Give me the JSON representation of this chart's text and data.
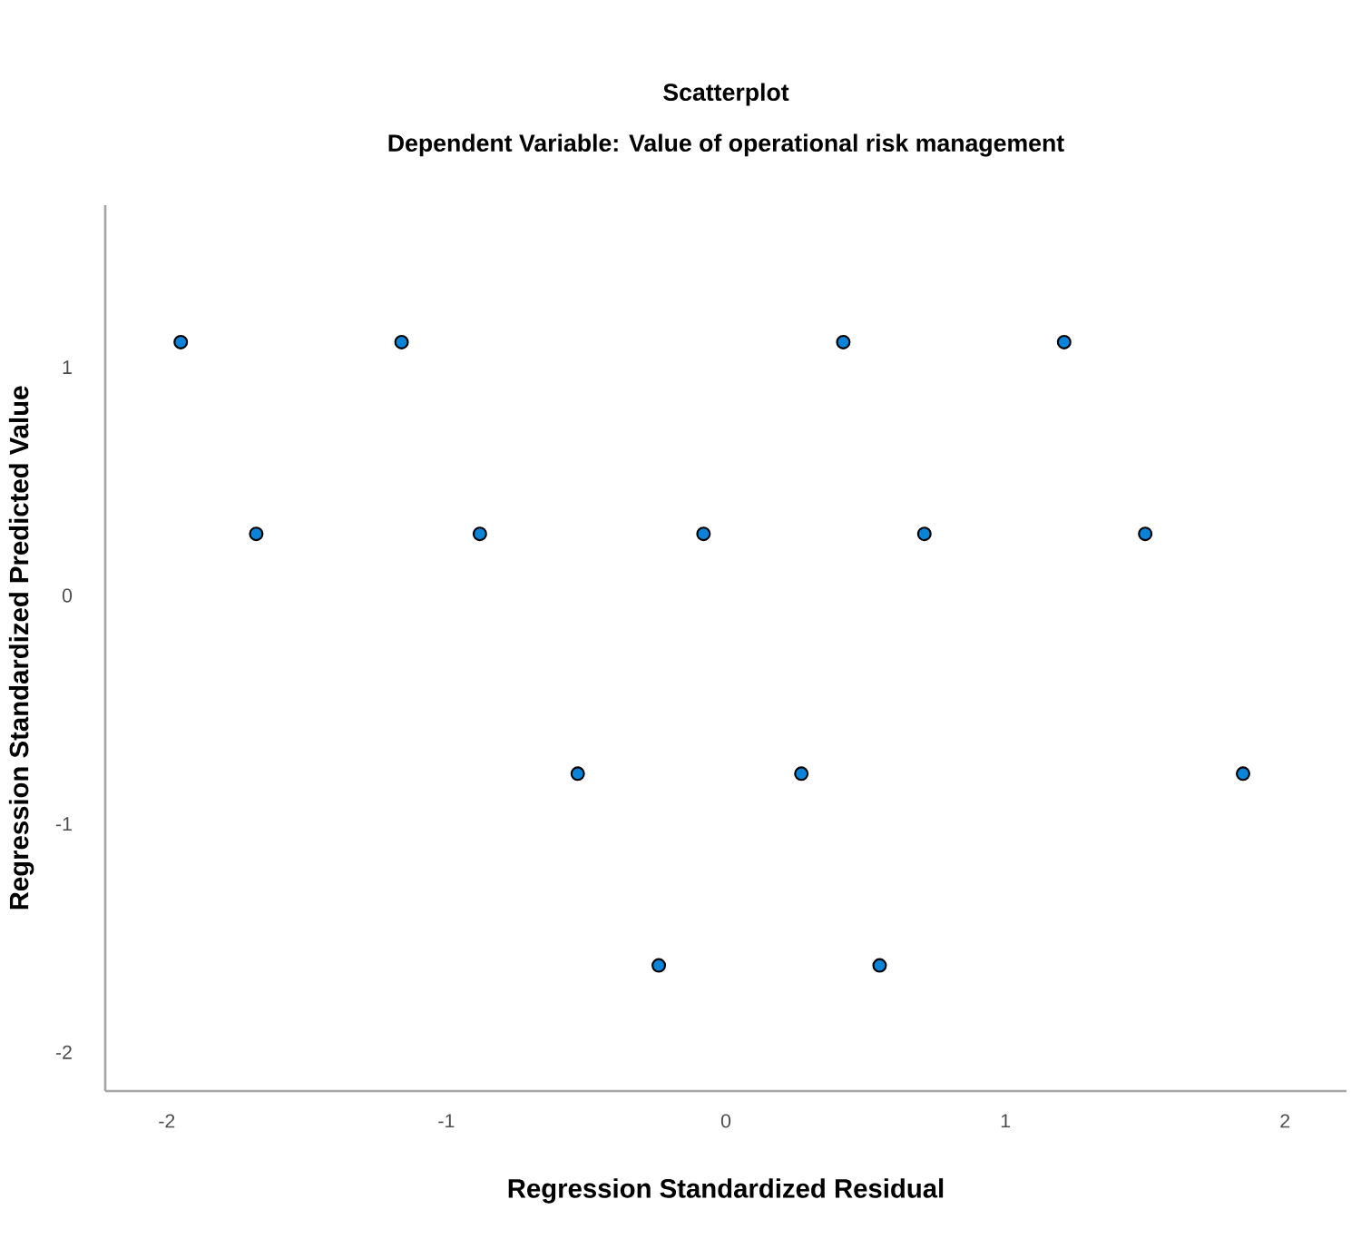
{
  "chart_data": {
    "type": "scatter",
    "title": "Scatterplot",
    "subtitle": "Dependent Variable: Value of operational risk management",
    "xlabel": "Regression Standardized Residual",
    "ylabel": "Regression Standardized Predicted Value",
    "xlim": [
      -2.22,
      2.22
    ],
    "ylim": [
      -2.17,
      1.71
    ],
    "xticks": [
      -2,
      -1,
      0,
      1,
      2
    ],
    "yticks": [
      -2,
      -1,
      0,
      1
    ],
    "grid": false,
    "marker": "circle",
    "series": [
      {
        "color": "#0a84d8",
        "x": [
          -1.95,
          -1.16,
          0.42,
          1.21,
          -1.68,
          -0.88,
          -0.08,
          0.71,
          1.5,
          -0.53,
          0.27,
          1.85,
          -0.24,
          0.55
        ],
        "values": [
          1.11,
          1.11,
          1.11,
          1.11,
          0.27,
          0.27,
          0.27,
          0.27,
          0.27,
          -0.78,
          -0.78,
          -0.78,
          -1.62,
          -1.62
        ]
      }
    ]
  }
}
